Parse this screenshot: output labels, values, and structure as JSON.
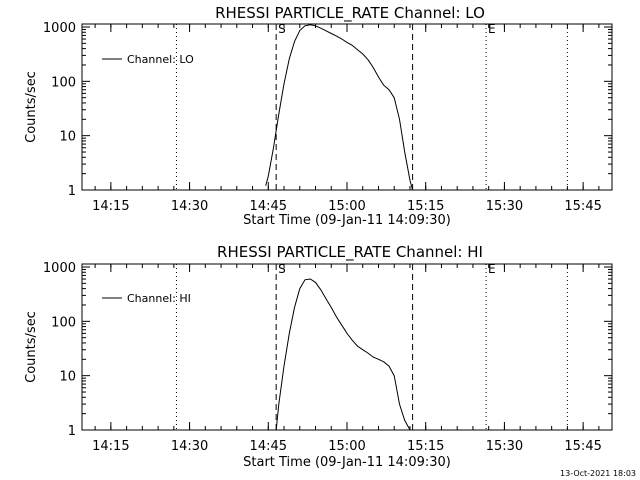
{
  "footer": {
    "timestamp": "13-Oct-2021 18:03"
  },
  "chart_data": [
    {
      "type": "line",
      "title": "RHESSI PARTICLE_RATE Channel: LO",
      "xlabel": "Start Time (09-Jan-11 14:09:30)",
      "ylabel": "Counts/sec",
      "xlim": [
        "14:09:30",
        "15:50:30"
      ],
      "ylim": [
        1,
        1000
      ],
      "yscale": "log",
      "xticks": [
        "14:15",
        "14:30",
        "14:45",
        "15:00",
        "15:15",
        "15:30",
        "15:45"
      ],
      "yticks": [
        "1",
        "10",
        "100",
        "1000"
      ],
      "legend": {
        "location": "top-left",
        "entries": [
          "Channel: LO"
        ]
      },
      "markers": {
        "dashed": [
          {
            "x": "14:46:30",
            "label": "S"
          },
          {
            "x": "15:12:30",
            "label": ""
          }
        ],
        "dotted": [
          {
            "x": "14:27:30",
            "label": ""
          },
          {
            "x": "15:26:30",
            "label": "E"
          },
          {
            "x": "15:42:00",
            "label": ""
          }
        ]
      },
      "series": [
        {
          "name": "Channel: LO",
          "x": [
            "14:44:30",
            "14:45:00",
            "14:46:00",
            "14:47:00",
            "14:48:00",
            "14:49:00",
            "14:50:00",
            "14:51:00",
            "14:52:00",
            "14:53:00",
            "14:54:00",
            "14:55:00",
            "14:56:00",
            "14:57:00",
            "14:58:00",
            "14:59:00",
            "15:00:00",
            "15:01:00",
            "15:02:00",
            "15:03:00",
            "15:04:00",
            "15:05:00",
            "15:06:00",
            "15:07:00",
            "15:08:00",
            "15:09:00",
            "15:10:00",
            "15:11:00",
            "15:12:00",
            "15:12:30"
          ],
          "y": [
            1.2,
            1.8,
            6,
            25,
            90,
            260,
            540,
            860,
            1050,
            1100,
            1050,
            950,
            850,
            760,
            680,
            600,
            520,
            460,
            380,
            320,
            250,
            180,
            120,
            85,
            70,
            50,
            20,
            5,
            1.5,
            1
          ]
        }
      ]
    },
    {
      "type": "line",
      "title": "RHESSI PARTICLE_RATE Channel: HI",
      "xlabel": "Start Time (09-Jan-11 14:09:30)",
      "ylabel": "Counts/sec",
      "xlim": [
        "14:09:30",
        "15:50:30"
      ],
      "ylim": [
        1,
        1000
      ],
      "yscale": "log",
      "xticks": [
        "14:15",
        "14:30",
        "14:45",
        "15:00",
        "15:15",
        "15:30",
        "15:45"
      ],
      "yticks": [
        "1",
        "10",
        "100",
        "1000"
      ],
      "legend": {
        "location": "top-left",
        "entries": [
          "Channel: HI"
        ]
      },
      "markers": {
        "dashed": [
          {
            "x": "14:46:30",
            "label": "S"
          },
          {
            "x": "15:12:30",
            "label": ""
          }
        ],
        "dotted": [
          {
            "x": "14:27:30",
            "label": ""
          },
          {
            "x": "15:26:30",
            "label": "E"
          },
          {
            "x": "15:42:00",
            "label": ""
          }
        ]
      },
      "series": [
        {
          "name": "Channel: HI",
          "x": [
            "14:46:30",
            "14:47:00",
            "14:48:00",
            "14:49:00",
            "14:50:00",
            "14:51:00",
            "14:52:00",
            "14:53:00",
            "14:54:00",
            "14:55:00",
            "14:56:00",
            "14:57:00",
            "14:58:00",
            "14:59:00",
            "15:00:00",
            "15:01:00",
            "15:02:00",
            "15:03:00",
            "15:04:00",
            "15:05:00",
            "15:06:00",
            "15:07:00",
            "15:08:00",
            "15:09:00",
            "15:10:00",
            "15:11:00",
            "15:12:00",
            "15:12:30"
          ],
          "y": [
            1,
            3,
            15,
            60,
            180,
            400,
            580,
            600,
            520,
            380,
            260,
            180,
            120,
            85,
            60,
            45,
            35,
            30,
            26,
            22,
            20,
            18,
            15,
            10,
            3,
            1.5,
            1,
            1
          ]
        }
      ]
    }
  ]
}
